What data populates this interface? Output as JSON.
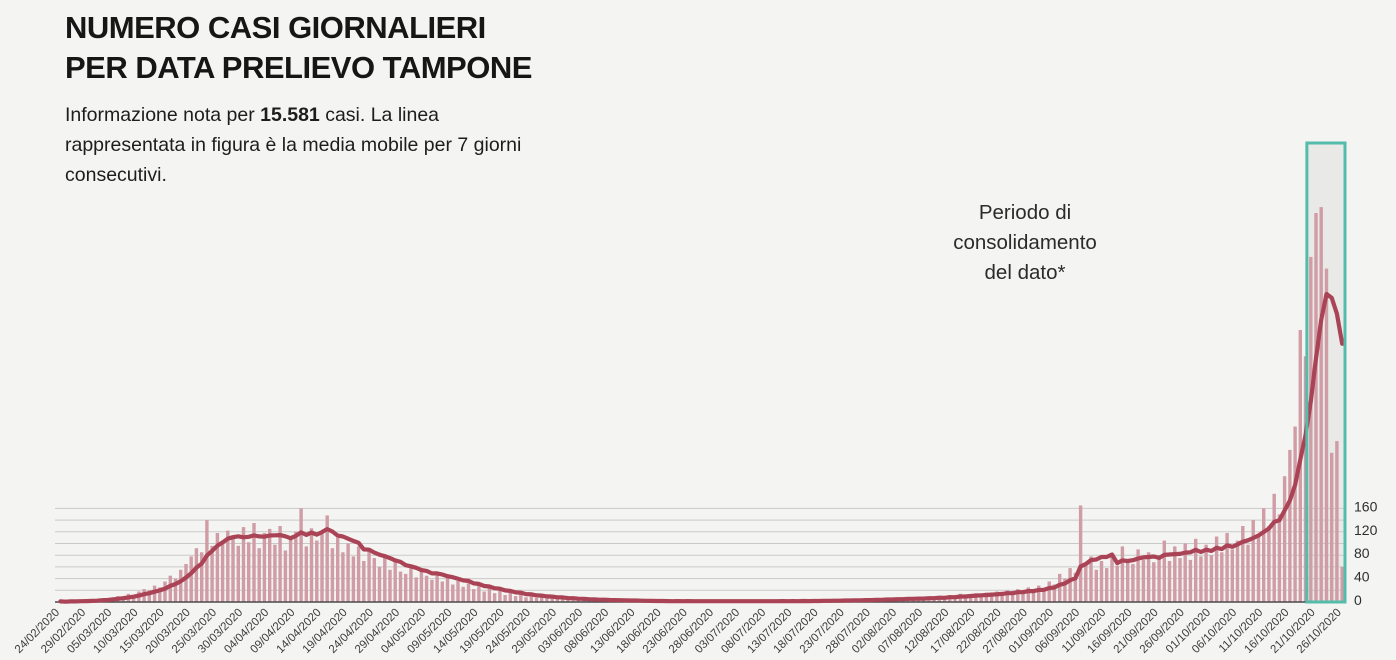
{
  "title": {
    "line1": "NUMERO CASI GIORNALIERI",
    "line2": "PER DATA PRELIEVO TAMPONE"
  },
  "subtitle": {
    "prefix": "Informazione nota per ",
    "highlight": "15.581",
    "suffix": " casi. La linea rappresentata in figura è la media mobile per 7 giorni consecutivi."
  },
  "annotation": {
    "lines": [
      "Periodo di",
      "consolidamento",
      "del dato*"
    ]
  },
  "colors": {
    "background": "#f4f4f2",
    "bar": "#d09ca5",
    "line": "#a94355",
    "grid": "#c9c9c9",
    "axis": "#4a4a4a",
    "box_stroke": "#54bcab",
    "box_fill": "#e9e9e7",
    "y_tick_text": "#2e2e2e",
    "x_tick_text": "#3c3c3c"
  },
  "chart_data": {
    "type": "bar",
    "title": "Numero casi giornalieri per data prelievo tampone",
    "xlabel": "",
    "ylabel": "",
    "start_date": "24/02/2020",
    "end_date": "26/10/2020",
    "x_tick_interval_days": 5,
    "x_tick_labels": [
      "24/02/2020",
      "29/02/2020",
      "05/03/2020",
      "10/03/2020",
      "15/03/2020",
      "20/03/2020",
      "25/03/2020",
      "30/03/2020",
      "04/04/2020",
      "09/04/2020",
      "14/04/2020",
      "19/04/2020",
      "24/04/2020",
      "29/04/2020",
      "04/05/2020",
      "09/05/2020",
      "14/05/2020",
      "19/05/2020",
      "24/05/2020",
      "29/05/2020",
      "03/06/2020",
      "08/06/2020",
      "13/06/2020",
      "18/06/2020",
      "23/06/2020",
      "28/06/2020",
      "03/07/2020",
      "08/07/2020",
      "13/07/2020",
      "18/07/2020",
      "23/07/2020",
      "28/07/2020",
      "02/08/2020",
      "07/08/2020",
      "12/08/2020",
      "17/08/2020",
      "22/08/2020",
      "27/08/2020",
      "01/09/2020",
      "06/09/2020",
      "11/09/2020",
      "16/09/2020",
      "21/09/2020",
      "26/09/2020",
      "01/10/2020",
      "06/10/2020",
      "11/10/2020",
      "16/10/2020",
      "21/10/2020",
      "26/10/2020"
    ],
    "values": [
      1,
      0,
      2,
      1,
      3,
      2,
      4,
      3,
      6,
      5,
      8,
      10,
      9,
      14,
      12,
      18,
      22,
      20,
      28,
      25,
      35,
      45,
      40,
      55,
      65,
      78,
      92,
      85,
      140,
      96,
      118,
      104,
      122,
      110,
      96,
      128,
      102,
      135,
      92,
      118,
      125,
      98,
      130,
      88,
      112,
      120,
      160,
      95,
      126,
      105,
      118,
      148,
      92,
      110,
      85,
      100,
      78,
      95,
      70,
      88,
      75,
      60,
      82,
      55,
      68,
      52,
      48,
      62,
      42,
      55,
      45,
      38,
      52,
      35,
      42,
      30,
      36,
      26,
      32,
      22,
      28,
      18,
      24,
      15,
      20,
      12,
      16,
      10,
      14,
      8,
      12,
      7,
      10,
      6,
      8,
      5,
      7,
      4,
      6,
      3,
      5,
      3,
      4,
      2,
      4,
      3,
      2,
      3,
      1,
      3,
      2,
      1,
      2,
      1,
      2,
      1,
      2,
      1,
      2,
      1,
      2,
      1,
      1,
      2,
      1,
      1,
      2,
      1,
      1,
      2,
      1,
      1,
      2,
      1,
      2,
      1,
      2,
      1,
      2,
      1,
      2,
      1,
      3,
      1,
      2,
      2,
      3,
      2,
      3,
      2,
      4,
      2,
      4,
      3,
      5,
      3,
      5,
      4,
      6,
      4,
      6,
      5,
      8,
      5,
      7,
      6,
      9,
      6,
      10,
      7,
      12,
      8,
      14,
      9,
      12,
      15,
      10,
      16,
      12,
      18,
      14,
      20,
      15,
      22,
      16,
      25,
      18,
      28,
      22,
      35,
      30,
      48,
      40,
      58,
      50,
      165,
      62,
      78,
      55,
      70,
      58,
      80,
      62,
      95,
      70,
      65,
      90,
      72,
      85,
      68,
      78,
      105,
      70,
      95,
      75,
      100,
      72,
      108,
      78,
      98,
      80,
      112,
      85,
      118,
      90,
      105,
      130,
      98,
      140,
      115,
      160,
      130,
      185,
      150,
      215,
      260,
      300,
      465,
      420,
      590,
      665,
      675,
      570,
      255,
      275,
      60
    ],
    "moving_average": {
      "window": 7,
      "label": "media mobile per 7 giorni consecutivi"
    },
    "y_ticks": [
      0,
      40,
      80,
      120,
      160
    ],
    "gridline_step": 20,
    "gridline_max": 160,
    "grid": "on",
    "legend_position": "none",
    "consolidation_window_days": 7,
    "consolidation_label": "Periodo di consolidamento del dato*"
  }
}
